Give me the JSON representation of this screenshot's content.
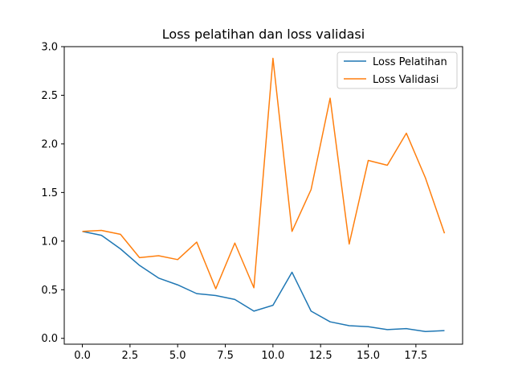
{
  "chart_data": {
    "type": "line",
    "title": "Loss pelatihan dan loss validasi",
    "xlabel": "",
    "ylabel": "",
    "xlim": [
      -0.95,
      19.95
    ],
    "ylim": [
      -0.06,
      3.0
    ],
    "xticks": [
      0.0,
      2.5,
      5.0,
      7.5,
      10.0,
      12.5,
      15.0,
      17.5
    ],
    "xtick_labels": [
      "0.0",
      "2.5",
      "5.0",
      "7.5",
      "10.0",
      "12.5",
      "15.0",
      "17.5"
    ],
    "yticks": [
      0.0,
      0.5,
      1.0,
      1.5,
      2.0,
      2.5,
      3.0
    ],
    "ytick_labels": [
      "0.0",
      "0.5",
      "1.0",
      "1.5",
      "2.0",
      "2.5",
      "3.0"
    ],
    "grid": false,
    "legend": "top-right",
    "x": [
      0,
      1,
      2,
      3,
      4,
      5,
      6,
      7,
      8,
      9,
      10,
      11,
      12,
      13,
      14,
      15,
      16,
      17,
      18,
      19
    ],
    "series": [
      {
        "name": "Loss Pelatihan",
        "color": "#1f77b4",
        "values": [
          1.1,
          1.06,
          0.92,
          0.75,
          0.62,
          0.55,
          0.46,
          0.44,
          0.4,
          0.28,
          0.34,
          0.68,
          0.28,
          0.17,
          0.13,
          0.12,
          0.09,
          0.1,
          0.07,
          0.08
        ]
      },
      {
        "name": "Loss Validasi",
        "color": "#ff7f0e",
        "values": [
          1.1,
          1.11,
          1.07,
          0.83,
          0.85,
          0.81,
          0.99,
          0.51,
          0.98,
          0.52,
          2.88,
          1.1,
          1.53,
          2.47,
          0.97,
          1.83,
          1.78,
          2.11,
          1.65,
          1.08
        ]
      }
    ]
  }
}
